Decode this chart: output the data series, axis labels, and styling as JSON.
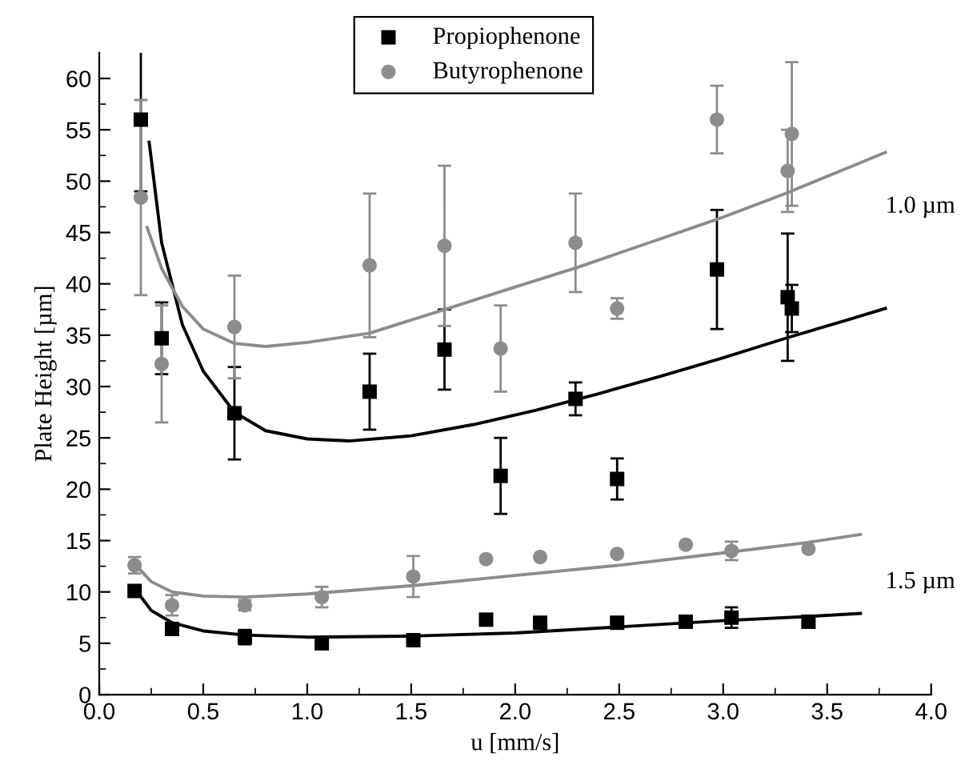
{
  "chart_data": {
    "type": "scatter",
    "xlabel": "u [mm/s]",
    "ylabel": "Plate Height [µm]",
    "xlim": [
      0,
      4.0
    ],
    "ylim": [
      0,
      62.5
    ],
    "xticks": [
      {
        "value": 0,
        "label": "0.0"
      },
      0.5,
      {
        "value": 1,
        "label": "1.0"
      },
      1.5,
      {
        "value": 2,
        "label": "2.0"
      },
      2.5,
      {
        "value": 3,
        "label": "3.0"
      },
      3.5,
      {
        "value": 4,
        "label": "4.0"
      }
    ],
    "yticks": [
      0,
      5,
      10,
      15,
      20,
      25,
      30,
      35,
      40,
      45,
      50,
      55,
      60
    ],
    "grid": false,
    "legend": "top",
    "annotations": [
      "1.0 µm",
      "1.5 µm"
    ],
    "series": [
      {
        "name": "Propiophenone",
        "marker": "square",
        "color": "#000000",
        "x": [
          0.2,
          0.3,
          0.65,
          1.3,
          1.66,
          1.93,
          2.29,
          2.49,
          2.97,
          3.31,
          3.33,
          0.17,
          0.35,
          0.7,
          1.07,
          1.51,
          1.86,
          2.12,
          2.49,
          2.82,
          3.04,
          3.41
        ],
        "values": [
          56,
          34.7,
          27.4,
          29.5,
          33.6,
          21.3,
          28.8,
          21,
          41.4,
          38.7,
          37.6,
          10.1,
          6.4,
          5.6,
          5,
          5.3,
          7.3,
          7,
          7,
          7.1,
          7.5,
          7.1
        ],
        "errors": [
          7,
          3.5,
          4.5,
          3.7,
          3.9,
          3.7,
          1.6,
          2,
          5.8,
          6.2,
          2.3,
          null,
          null,
          0.7,
          null,
          null,
          null,
          null,
          null,
          null,
          1,
          null
        ]
      },
      {
        "name": "Butyrophenone",
        "marker": "circle",
        "color": "#8c8c8c",
        "x": [
          0.2,
          0.3,
          0.65,
          1.3,
          1.66,
          1.93,
          2.29,
          2.49,
          2.97,
          3.33,
          3.31,
          0.17,
          0.35,
          0.7,
          1.07,
          1.51,
          1.86,
          2.12,
          2.49,
          2.82,
          3.04,
          3.41
        ],
        "values": [
          48.4,
          32.2,
          35.8,
          41.8,
          43.7,
          33.7,
          44,
          37.6,
          56,
          54.6,
          51,
          12.6,
          8.7,
          8.7,
          9.5,
          11.5,
          13.2,
          13.4,
          13.7,
          14.6,
          14,
          14.2
        ],
        "errors": [
          9.5,
          5.7,
          5,
          7,
          7.8,
          4.2,
          4.8,
          1,
          3.3,
          7,
          4,
          0.8,
          1,
          0.5,
          1,
          2,
          null,
          null,
          null,
          null,
          0.9,
          null
        ]
      },
      {
        "type": "line",
        "color": "#000000",
        "x": [
          0.24,
          0.3,
          0.4,
          0.5,
          0.65,
          0.8,
          1.0,
          1.2,
          1.5,
          1.8,
          2.1,
          2.4,
          2.7,
          3.0,
          3.3,
          3.6,
          3.78
        ],
        "values": [
          53.8,
          44,
          36,
          31.5,
          27.5,
          25.7,
          24.9,
          24.7,
          25.2,
          26.3,
          27.7,
          29.3,
          31,
          32.8,
          34.7,
          36.5,
          37.6
        ]
      },
      {
        "type": "line",
        "color": "#8c8c8c",
        "x": [
          0.23,
          0.3,
          0.4,
          0.5,
          0.65,
          0.8,
          1.0,
          1.3,
          1.66,
          2.0,
          2.3,
          2.6,
          3.0,
          3.3,
          3.6,
          3.78
        ],
        "values": [
          45.5,
          41.5,
          37.8,
          35.6,
          34.2,
          33.9,
          34.3,
          35.2,
          37.5,
          39.7,
          41.6,
          43.7,
          46.5,
          48.8,
          51.3,
          52.8
        ]
      },
      {
        "type": "line",
        "color": "#000000",
        "x": [
          0.19,
          0.25,
          0.35,
          0.5,
          0.7,
          1.0,
          1.5,
          2.0,
          2.5,
          3.0,
          3.4,
          3.66
        ],
        "values": [
          9.8,
          8.2,
          7,
          6.2,
          5.8,
          5.6,
          5.7,
          6,
          6.6,
          7.2,
          7.6,
          7.9
        ]
      },
      {
        "type": "line",
        "color": "#8c8c8c",
        "x": [
          0.19,
          0.25,
          0.35,
          0.5,
          0.7,
          1.0,
          1.5,
          2.0,
          2.5,
          3.0,
          3.4,
          3.66
        ],
        "values": [
          12.3,
          11,
          10,
          9.6,
          9.5,
          9.8,
          10.6,
          11.6,
          12.6,
          13.8,
          14.8,
          15.6
        ]
      }
    ]
  }
}
